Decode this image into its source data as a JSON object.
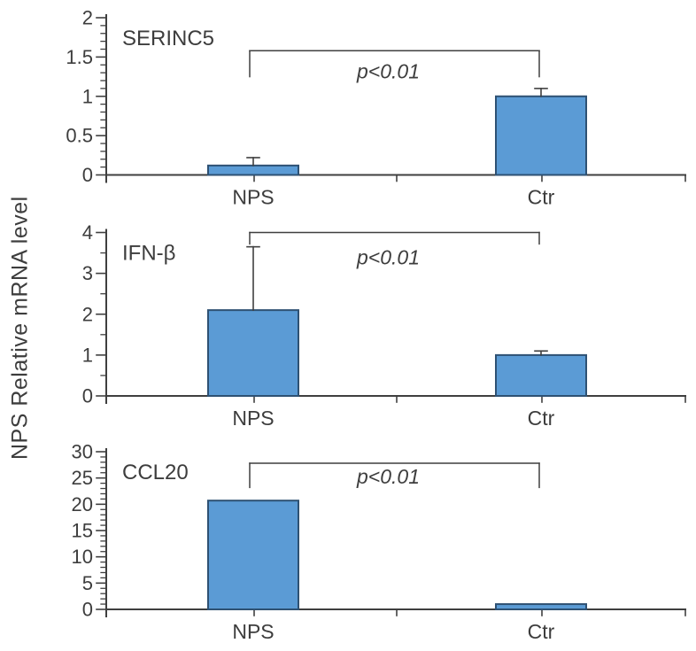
{
  "figure": {
    "y_axis_label": "NPS Relative mRNA level",
    "colors": {
      "bar_fill": "#5b9bd5",
      "bar_border": "#2e5173",
      "axis": "#3f3f3f",
      "text": "#3d3d3d"
    }
  },
  "chart_data": [
    {
      "type": "bar",
      "title": "SERINC5",
      "categories": [
        "NPS",
        "Ctr"
      ],
      "values": [
        0.12,
        1.0
      ],
      "errors": [
        0.1,
        0.1
      ],
      "ylim": [
        0,
        2
      ],
      "ytick_values": [
        0,
        0.5,
        1,
        1.5,
        2
      ],
      "ytick_labels": [
        "0",
        "0.5",
        "1",
        "1.5",
        "2"
      ],
      "yminor_step": 0.1,
      "annotation": "p<0.01",
      "bracket": {
        "top": 1.58,
        "drop": 1.25
      },
      "grid": false,
      "legend": false
    },
    {
      "type": "bar",
      "title": "IFN-β",
      "categories": [
        "NPS",
        "Ctr"
      ],
      "values": [
        2.1,
        1.0
      ],
      "errors": [
        1.55,
        0.1
      ],
      "ylim": [
        0,
        4
      ],
      "ytick_values": [
        0,
        1,
        2,
        3,
        4
      ],
      "ytick_labels": [
        "0",
        "1",
        "2",
        "3",
        "4"
      ],
      "yminor_step": 0.5,
      "annotation": "p<0.01",
      "bracket": {
        "top": 4.0,
        "drop": 3.72
      },
      "grid": false,
      "legend": false
    },
    {
      "type": "bar",
      "title": "CCL20",
      "categories": [
        "NPS",
        "Ctr"
      ],
      "values": [
        20.7,
        1.0
      ],
      "errors": [
        0,
        0
      ],
      "ylim": [
        0,
        30
      ],
      "ytick_values": [
        0,
        5,
        10,
        15,
        20,
        25,
        30
      ],
      "ytick_labels": [
        "0",
        "5",
        "10",
        "15",
        "20",
        "25",
        "30"
      ],
      "yminor_step": 1,
      "annotation": "p<0.01",
      "bracket": {
        "top": 27.8,
        "drop": 23.2
      },
      "grid": false,
      "legend": false
    }
  ]
}
